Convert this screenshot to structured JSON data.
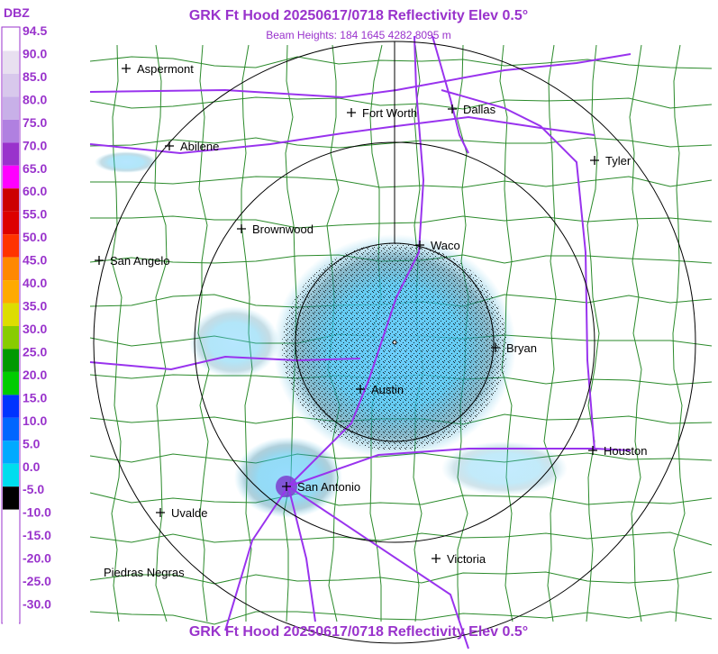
{
  "header": {
    "title": "GRK Ft Hood 20250617/0718 Reflectivity Elev 0.5°",
    "subtitle": "Beam Heights: 184 1645 4282 8095 m",
    "footer": "GRK Ft Hood 20250617/0718 Reflectivity Elev 0.5°"
  },
  "scale": {
    "unit": "DBZ",
    "labels": [
      "94.5",
      "90.0",
      "85.0",
      "80.0",
      "75.0",
      "70.0",
      "65.0",
      "60.0",
      "55.0",
      "50.0",
      "45.0",
      "40.0",
      "35.0",
      "30.0",
      "25.0",
      "20.0",
      "15.0",
      "10.0",
      "5.0",
      "0.0",
      "-5.0",
      "-10.0",
      "-15.0",
      "-20.0",
      "-25.0",
      "-30.0"
    ]
  },
  "cities": [
    {
      "label": "Aspermont"
    },
    {
      "label": "Fort Worth"
    },
    {
      "label": "Dallas"
    },
    {
      "label": "Abilene"
    },
    {
      "label": "Tyler"
    },
    {
      "label": "Brownwood"
    },
    {
      "label": "Waco"
    },
    {
      "label": "San Angelo"
    },
    {
      "label": "Bryan"
    },
    {
      "label": "Austin"
    },
    {
      "label": "Houston"
    },
    {
      "label": "San Antonio"
    },
    {
      "label": "Uvalde"
    },
    {
      "label": "Victoria"
    },
    {
      "label": "Piedras Negras"
    }
  ]
}
